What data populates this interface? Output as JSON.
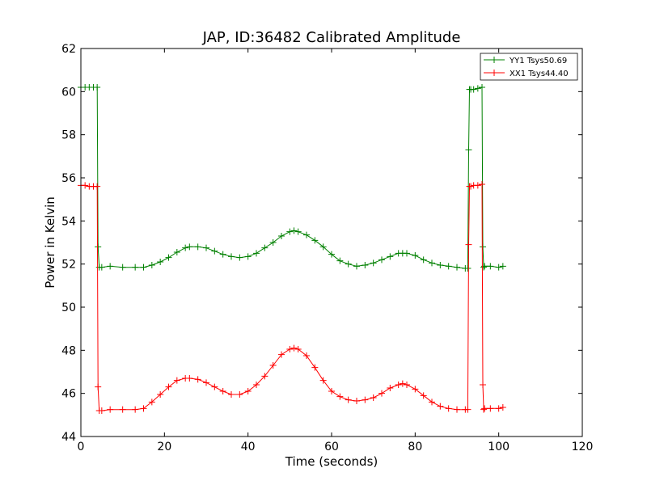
{
  "chart_data": {
    "type": "line",
    "title": "JAP, ID:36482 Calibrated Amplitude",
    "xlabel": "Time (seconds)",
    "ylabel": "Power in Kelvin",
    "xlim": [
      0,
      120
    ],
    "ylim": [
      44,
      62
    ],
    "xticks": [
      "0",
      "20",
      "40",
      "60",
      "80",
      "100",
      "120"
    ],
    "yticks": [
      "44",
      "46",
      "48",
      "50",
      "52",
      "54",
      "56",
      "58",
      "60",
      "62"
    ],
    "grid": false,
    "legend": "top-right",
    "series": [
      {
        "name": "YY1 Tsys50.69",
        "color": "#008000",
        "marker": "+",
        "x": [
          0,
          1,
          2,
          3,
          3.9,
          4.1,
          4.4,
          5,
          7,
          10,
          13,
          15,
          17,
          19,
          21,
          23,
          25,
          26,
          28,
          30,
          32,
          34,
          36,
          38,
          40,
          42,
          44,
          46,
          48,
          50,
          51,
          52,
          54,
          56,
          58,
          60,
          62,
          64,
          66,
          68,
          70,
          72,
          74,
          76,
          77,
          78,
          80,
          82,
          84,
          86,
          88,
          90,
          92,
          92.6,
          92.8,
          93,
          93.3,
          94,
          95,
          96,
          96.2,
          96.4,
          96.6,
          98,
          100,
          101
        ],
        "y": [
          60.2,
          60.2,
          60.2,
          60.2,
          60.2,
          52.8,
          51.85,
          51.85,
          51.9,
          51.85,
          51.85,
          51.85,
          51.95,
          52.1,
          52.3,
          52.55,
          52.75,
          52.8,
          52.8,
          52.75,
          52.6,
          52.45,
          52.35,
          52.3,
          52.35,
          52.5,
          52.75,
          53.0,
          53.3,
          53.5,
          53.55,
          53.5,
          53.35,
          53.1,
          52.8,
          52.45,
          52.15,
          52.0,
          51.9,
          51.95,
          52.05,
          52.2,
          52.35,
          52.5,
          52.5,
          52.5,
          52.4,
          52.2,
          52.05,
          51.95,
          51.9,
          51.85,
          51.8,
          51.8,
          57.3,
          60.1,
          60.1,
          60.1,
          60.15,
          60.2,
          52.8,
          51.85,
          51.9,
          51.9,
          51.85,
          51.9
        ]
      },
      {
        "name": "XX1 Tsys44.40",
        "color": "#ff0000",
        "marker": "+",
        "x": [
          0,
          1,
          2,
          3,
          3.9,
          4.1,
          4.4,
          5,
          7,
          10,
          13,
          15,
          17,
          19,
          21,
          23,
          25,
          26,
          28,
          30,
          32,
          34,
          36,
          38,
          40,
          42,
          44,
          46,
          48,
          50,
          51,
          52,
          54,
          56,
          58,
          60,
          62,
          64,
          66,
          68,
          70,
          72,
          74,
          76,
          77,
          78,
          80,
          82,
          84,
          86,
          88,
          90,
          92,
          92.6,
          92.8,
          93,
          93.3,
          94,
          95,
          96,
          96.2,
          96.4,
          96.6,
          98,
          100,
          101
        ],
        "y": [
          55.65,
          55.65,
          55.6,
          55.6,
          55.6,
          46.3,
          45.2,
          45.2,
          45.25,
          45.25,
          45.25,
          45.3,
          45.6,
          45.95,
          46.3,
          46.6,
          46.7,
          46.7,
          46.65,
          46.5,
          46.3,
          46.1,
          45.95,
          45.95,
          46.1,
          46.4,
          46.8,
          47.3,
          47.8,
          48.05,
          48.1,
          48.05,
          47.75,
          47.2,
          46.6,
          46.1,
          45.85,
          45.7,
          45.65,
          45.7,
          45.8,
          46.0,
          46.25,
          46.4,
          46.45,
          46.4,
          46.2,
          45.9,
          45.6,
          45.4,
          45.3,
          45.25,
          45.25,
          45.25,
          52.9,
          55.6,
          55.6,
          55.65,
          55.65,
          55.7,
          46.4,
          45.25,
          45.3,
          45.3,
          45.3,
          45.35
        ]
      }
    ]
  }
}
